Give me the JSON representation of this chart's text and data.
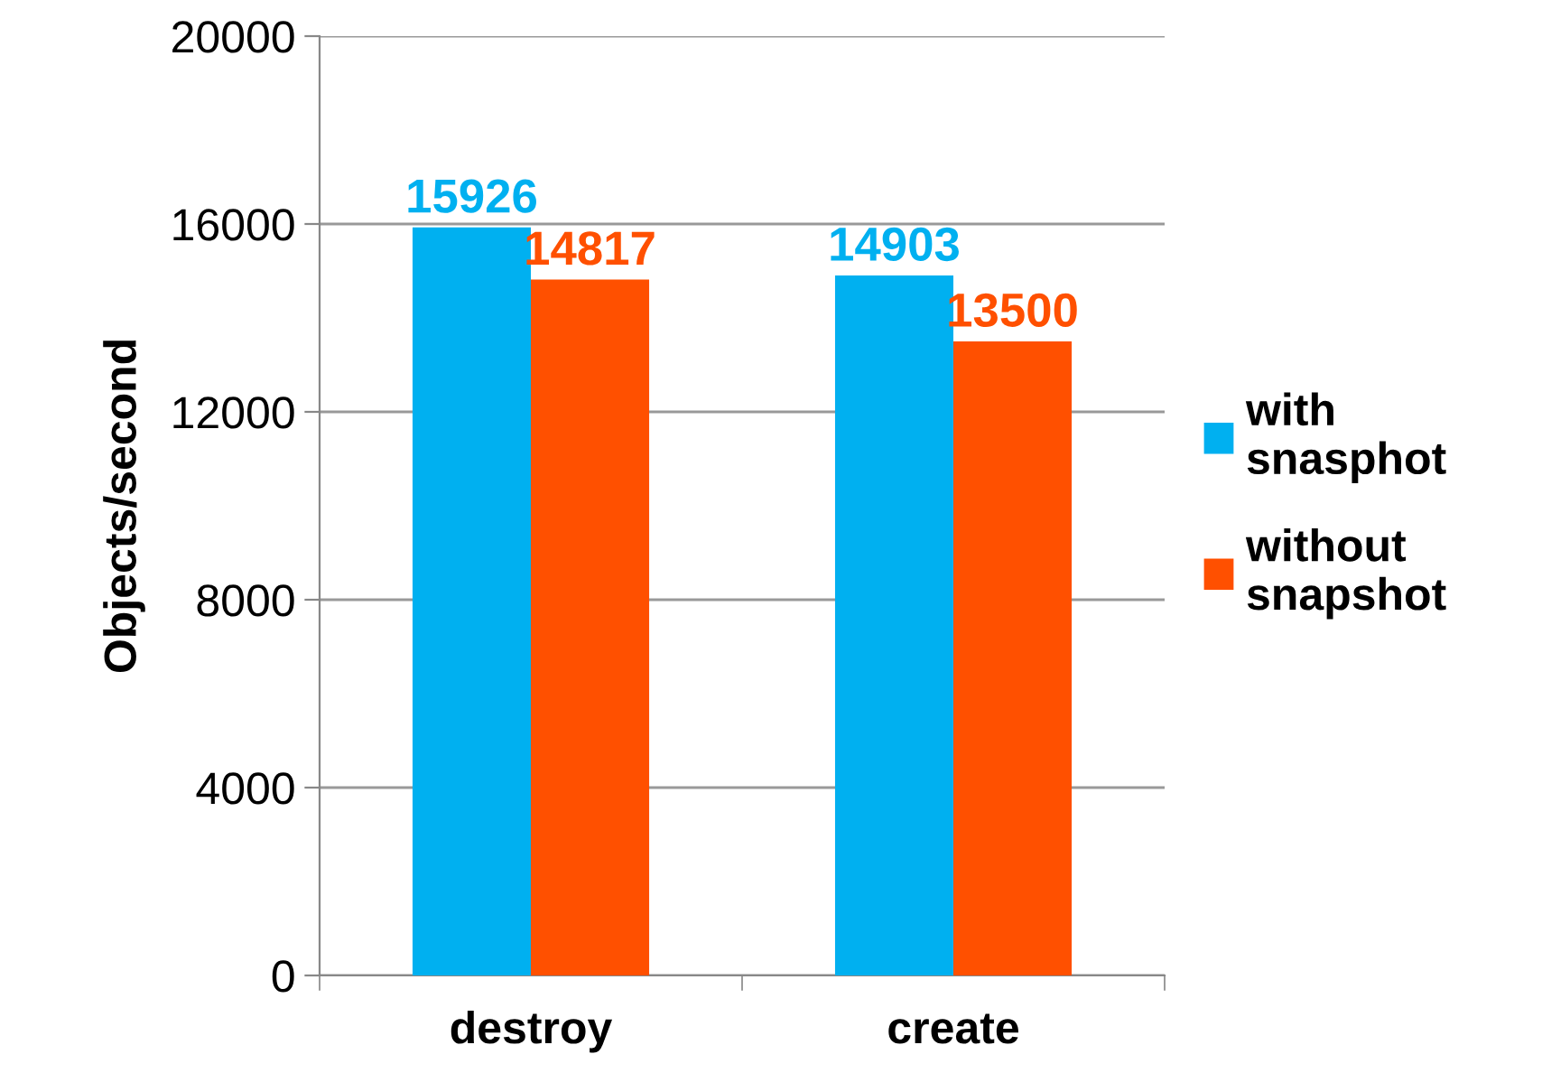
{
  "chart_data": {
    "type": "bar",
    "ylabel": "Objects/second",
    "categories": [
      "destroy",
      "create"
    ],
    "series": [
      {
        "name": "with snasphot",
        "color": "#00b0f0",
        "values": [
          15926,
          14903
        ]
      },
      {
        "name": "without snapshot",
        "color": "#ff5000",
        "values": [
          14817,
          13500
        ]
      }
    ],
    "ylim": [
      0,
      20000
    ],
    "yticks": [
      0,
      4000,
      8000,
      12000,
      16000,
      20000
    ],
    "grid": "y",
    "legend": "right",
    "data_labels": true
  }
}
